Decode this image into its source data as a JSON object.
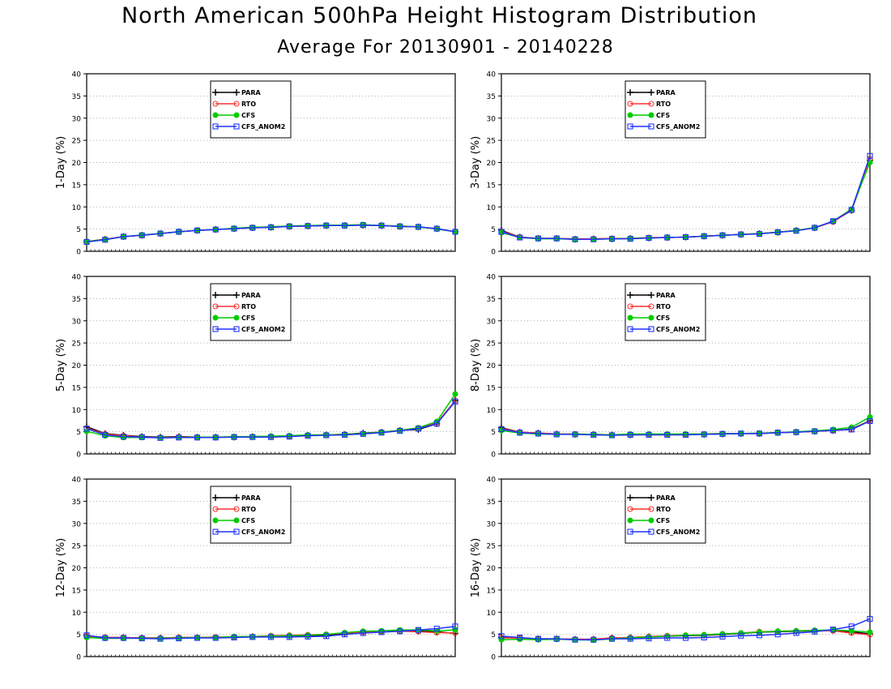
{
  "header": {
    "title": "North American 500hPa Height Histogram Distribution",
    "subtitle": "Average For 20130901 - 20140228"
  },
  "colors": {
    "PARA": "#000000",
    "RTO": "#ff3333",
    "CFS": "#00cc00",
    "CFS_ANOM2": "#2233ff",
    "grid": "#999999"
  },
  "legend_labels": [
    "PARA",
    "RTO",
    "CFS",
    "CFS_ANOM2"
  ],
  "chart_data": [
    {
      "type": "line",
      "ylabel": "1-Day (%)",
      "ylim": [
        0,
        40
      ],
      "yticks": [
        "0",
        "5",
        "10",
        "15",
        "20",
        "25",
        "30",
        "35",
        "40"
      ],
      "grid": true,
      "legend": "top-left",
      "series": [
        {
          "name": "PARA",
          "values": [
            2.2,
            2.7,
            3.3,
            3.6,
            4.0,
            4.4,
            4.7,
            4.9,
            5.1,
            5.3,
            5.4,
            5.6,
            5.7,
            5.8,
            5.8,
            5.9,
            5.8,
            5.6,
            5.5,
            5.1,
            4.4
          ]
        },
        {
          "name": "RTO",
          "values": [
            2.1,
            2.7,
            3.3,
            3.6,
            4.0,
            4.4,
            4.7,
            4.9,
            5.1,
            5.3,
            5.5,
            5.6,
            5.7,
            5.8,
            5.9,
            5.9,
            5.8,
            5.6,
            5.5,
            5.1,
            4.4
          ]
        },
        {
          "name": "CFS",
          "values": [
            2.2,
            2.6,
            3.3,
            3.7,
            4.0,
            4.4,
            4.7,
            4.9,
            5.2,
            5.4,
            5.5,
            5.7,
            5.8,
            5.9,
            5.9,
            6.0,
            5.8,
            5.7,
            5.5,
            5.0,
            4.4
          ]
        },
        {
          "name": "CFS_ANOM2",
          "values": [
            2.1,
            2.6,
            3.3,
            3.6,
            4.0,
            4.4,
            4.7,
            4.9,
            5.1,
            5.3,
            5.4,
            5.6,
            5.7,
            5.8,
            5.8,
            5.9,
            5.8,
            5.6,
            5.5,
            5.1,
            4.4
          ]
        }
      ]
    },
    {
      "type": "line",
      "ylabel": "3-Day (%)",
      "ylim": [
        0,
        40
      ],
      "yticks": [
        "0",
        "5",
        "10",
        "15",
        "20",
        "25",
        "30",
        "35",
        "40"
      ],
      "grid": true,
      "legend": "top-center",
      "series": [
        {
          "name": "PARA",
          "values": [
            4.7,
            3.2,
            2.9,
            2.9,
            2.7,
            2.8,
            2.8,
            2.9,
            3.0,
            3.1,
            3.2,
            3.4,
            3.6,
            3.8,
            4.0,
            4.3,
            4.7,
            5.3,
            6.7,
            9.2,
            20.5
          ]
        },
        {
          "name": "RTO",
          "values": [
            4.5,
            3.2,
            2.9,
            2.9,
            2.8,
            2.8,
            2.9,
            2.9,
            3.1,
            3.1,
            3.2,
            3.4,
            3.6,
            3.8,
            4.0,
            4.3,
            4.7,
            5.3,
            6.6,
            9.3,
            20.8
          ]
        },
        {
          "name": "CFS",
          "values": [
            4.2,
            3.1,
            2.8,
            2.8,
            2.7,
            2.7,
            2.8,
            2.9,
            3.0,
            3.1,
            3.2,
            3.4,
            3.6,
            3.8,
            4.0,
            4.3,
            4.7,
            5.3,
            6.8,
            9.5,
            20.0
          ]
        },
        {
          "name": "CFS_ANOM2",
          "values": [
            4.4,
            3.1,
            2.9,
            2.9,
            2.7,
            2.7,
            2.8,
            2.8,
            3.0,
            3.1,
            3.2,
            3.4,
            3.6,
            3.8,
            3.9,
            4.3,
            4.6,
            5.3,
            6.8,
            9.3,
            21.5
          ]
        }
      ]
    },
    {
      "type": "line",
      "ylabel": "5-Day (%)",
      "ylim": [
        0,
        40
      ],
      "yticks": [
        "0",
        "5",
        "10",
        "15",
        "20",
        "25",
        "30",
        "35",
        "40"
      ],
      "grid": true,
      "legend": "top-left",
      "series": [
        {
          "name": "PARA",
          "values": [
            6.1,
            4.6,
            4.2,
            3.9,
            3.8,
            3.9,
            3.8,
            3.8,
            3.8,
            3.9,
            3.9,
            4.0,
            4.2,
            4.3,
            4.4,
            4.7,
            4.9,
            5.3,
            5.5,
            6.8,
            12.0
          ]
        },
        {
          "name": "RTO",
          "values": [
            5.8,
            4.5,
            4.1,
            3.8,
            3.7,
            3.8,
            3.8,
            3.8,
            3.8,
            3.9,
            3.9,
            4.0,
            4.2,
            4.3,
            4.4,
            4.6,
            4.9,
            5.3,
            5.8,
            7.0,
            12.0
          ]
        },
        {
          "name": "CFS",
          "values": [
            5.1,
            4.1,
            3.7,
            3.7,
            3.7,
            3.7,
            3.8,
            3.8,
            3.9,
            3.9,
            4.0,
            4.1,
            4.3,
            4.3,
            4.4,
            4.6,
            4.9,
            5.3,
            5.9,
            7.3,
            13.5
          ]
        },
        {
          "name": "CFS_ANOM2",
          "values": [
            5.7,
            4.3,
            3.9,
            3.8,
            3.6,
            3.7,
            3.7,
            3.7,
            3.8,
            3.8,
            3.8,
            3.9,
            4.1,
            4.2,
            4.3,
            4.5,
            4.8,
            5.2,
            5.7,
            6.8,
            11.8
          ]
        }
      ]
    },
    {
      "type": "line",
      "ylabel": "8-Day (%)",
      "ylim": [
        0,
        40
      ],
      "yticks": [
        "0",
        "5",
        "10",
        "15",
        "20",
        "25",
        "30",
        "35",
        "40"
      ],
      "grid": true,
      "legend": "top-center",
      "series": [
        {
          "name": "PARA",
          "values": [
            5.9,
            4.9,
            4.7,
            4.5,
            4.4,
            4.4,
            4.3,
            4.3,
            4.4,
            4.4,
            4.4,
            4.4,
            4.5,
            4.6,
            4.6,
            4.8,
            4.9,
            5.1,
            5.3,
            5.6,
            7.5
          ]
        },
        {
          "name": "RTO",
          "values": [
            5.7,
            4.9,
            4.7,
            4.5,
            4.5,
            4.4,
            4.3,
            4.4,
            4.4,
            4.4,
            4.4,
            4.5,
            4.6,
            4.6,
            4.6,
            4.8,
            4.9,
            5.1,
            5.3,
            5.5,
            7.5
          ]
        },
        {
          "name": "CFS",
          "values": [
            5.3,
            4.7,
            4.5,
            4.4,
            4.5,
            4.4,
            4.3,
            4.5,
            4.5,
            4.5,
            4.5,
            4.5,
            4.6,
            4.6,
            4.7,
            4.8,
            5.0,
            5.2,
            5.5,
            6.0,
            8.3
          ]
        },
        {
          "name": "CFS_ANOM2",
          "values": [
            5.6,
            4.8,
            4.6,
            4.4,
            4.4,
            4.3,
            4.2,
            4.3,
            4.3,
            4.3,
            4.3,
            4.4,
            4.5,
            4.6,
            4.6,
            4.8,
            4.9,
            5.1,
            5.3,
            5.5,
            7.4
          ]
        }
      ]
    },
    {
      "type": "line",
      "ylabel": "12-Day (%)",
      "ylim": [
        0,
        40
      ],
      "yticks": [
        "0",
        "5",
        "10",
        "15",
        "20",
        "25",
        "30",
        "35",
        "40"
      ],
      "grid": true,
      "legend": "top-left",
      "series": [
        {
          "name": "PARA",
          "values": [
            4.7,
            4.3,
            4.3,
            4.2,
            4.2,
            4.3,
            4.3,
            4.3,
            4.4,
            4.5,
            4.6,
            4.6,
            4.7,
            4.8,
            5.2,
            5.4,
            5.6,
            5.8,
            5.8,
            5.6,
            5.2
          ]
        },
        {
          "name": "RTO",
          "values": [
            4.6,
            4.3,
            4.3,
            4.2,
            4.2,
            4.3,
            4.3,
            4.4,
            4.4,
            4.5,
            4.7,
            4.8,
            4.9,
            5.0,
            5.3,
            5.5,
            5.6,
            5.7,
            5.6,
            5.4,
            5.3
          ]
        },
        {
          "name": "CFS",
          "values": [
            4.3,
            4.1,
            4.1,
            4.1,
            4.1,
            4.2,
            4.3,
            4.3,
            4.5,
            4.5,
            4.6,
            4.7,
            4.8,
            5.0,
            5.4,
            5.7,
            5.8,
            6.0,
            6.0,
            5.8,
            6.0
          ]
        },
        {
          "name": "CFS_ANOM2",
          "values": [
            4.8,
            4.2,
            4.2,
            4.1,
            4.0,
            4.1,
            4.2,
            4.2,
            4.3,
            4.4,
            4.4,
            4.4,
            4.5,
            4.6,
            5.0,
            5.3,
            5.5,
            5.7,
            6.0,
            6.3,
            6.8
          ]
        }
      ]
    },
    {
      "type": "line",
      "ylabel": "16-Day (%)",
      "ylim": [
        0,
        40
      ],
      "yticks": [
        "0",
        "5",
        "10",
        "15",
        "20",
        "25",
        "30",
        "35",
        "40"
      ],
      "grid": true,
      "legend": "top-center",
      "series": [
        {
          "name": "PARA",
          "values": [
            4.3,
            4.2,
            4.0,
            4.0,
            3.9,
            3.9,
            4.2,
            4.3,
            4.5,
            4.6,
            4.7,
            4.8,
            5.0,
            5.2,
            5.5,
            5.6,
            5.7,
            5.8,
            5.9,
            5.6,
            5.1
          ]
        },
        {
          "name": "RTO",
          "values": [
            4.2,
            4.2,
            4.0,
            4.0,
            3.9,
            3.9,
            4.2,
            4.3,
            4.5,
            4.7,
            4.8,
            4.9,
            5.1,
            5.3,
            5.6,
            5.7,
            5.8,
            5.9,
            5.8,
            5.3,
            4.9
          ]
        },
        {
          "name": "CFS",
          "values": [
            3.8,
            3.9,
            3.8,
            3.9,
            3.8,
            3.7,
            4.0,
            4.2,
            4.4,
            4.6,
            4.8,
            4.9,
            5.1,
            5.3,
            5.5,
            5.7,
            5.8,
            5.9,
            6.0,
            5.8,
            5.5
          ]
        },
        {
          "name": "CFS_ANOM2",
          "values": [
            4.6,
            4.3,
            4.0,
            4.0,
            3.8,
            3.8,
            4.0,
            4.0,
            4.1,
            4.2,
            4.2,
            4.3,
            4.5,
            4.7,
            4.8,
            5.0,
            5.3,
            5.6,
            6.1,
            6.8,
            8.5
          ]
        }
      ]
    }
  ]
}
